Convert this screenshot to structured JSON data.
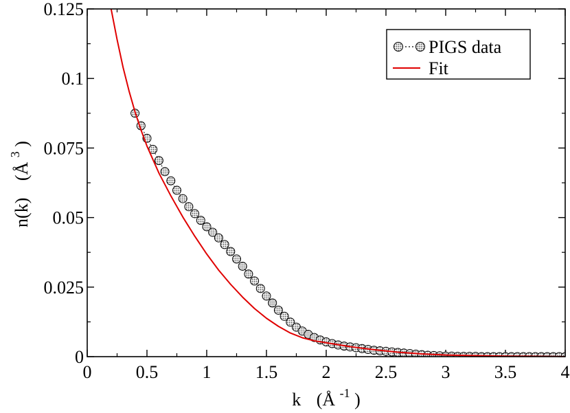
{
  "chart_data": {
    "type": "line",
    "title": "",
    "xlabel_main": "k",
    "xlabel_unit_open": "(Å",
    "xlabel_unit_sup": "-1",
    "xlabel_unit_close": ")",
    "ylabel_main": "n(k)",
    "ylabel_unit_open": "(Å",
    "ylabel_unit_sup": "3",
    "ylabel_unit_close": ")",
    "xlim": [
      0,
      4
    ],
    "ylim": [
      0,
      0.125
    ],
    "x_ticks": [
      0,
      0.5,
      1,
      1.5,
      2,
      2.5,
      3,
      3.5,
      4
    ],
    "x_tick_labels": [
      "0",
      "0.5",
      "1",
      "1.5",
      "2",
      "2.5",
      "3",
      "3.5",
      "4"
    ],
    "y_ticks": [
      0,
      0.025,
      0.05,
      0.075,
      0.1,
      0.125
    ],
    "y_tick_labels": [
      "0",
      "0.025",
      "0.05",
      "0.075",
      "0.1",
      "0.125"
    ],
    "grid": false,
    "legend_position": "top-right",
    "series": [
      {
        "name": "PIGS data",
        "style": "markers-dotted",
        "marker_color": "#c8c8c8",
        "x": [
          0.4,
          0.45,
          0.5,
          0.55,
          0.6,
          0.65,
          0.7,
          0.75,
          0.8,
          0.85,
          0.9,
          0.95,
          1.0,
          1.05,
          1.1,
          1.15,
          1.2,
          1.25,
          1.3,
          1.35,
          1.4,
          1.45,
          1.5,
          1.55,
          1.6,
          1.65,
          1.7,
          1.75,
          1.8,
          1.85,
          1.9,
          1.95,
          2.0,
          2.05,
          2.1,
          2.15,
          2.2,
          2.25,
          2.3,
          2.35,
          2.4,
          2.45,
          2.5,
          2.55,
          2.6,
          2.65,
          2.7,
          2.75,
          2.8,
          2.85,
          2.9,
          2.95,
          3.0,
          3.05,
          3.1,
          3.15,
          3.2,
          3.25,
          3.3,
          3.35,
          3.4,
          3.45,
          3.5,
          3.55,
          3.6,
          3.65,
          3.7,
          3.75,
          3.8,
          3.85,
          3.9,
          3.95,
          4.0
        ],
        "values": [
          0.0875,
          0.083,
          0.0785,
          0.0745,
          0.0705,
          0.0665,
          0.0632,
          0.0598,
          0.0568,
          0.0539,
          0.0514,
          0.049,
          0.0467,
          0.0447,
          0.0427,
          0.0403,
          0.0378,
          0.0351,
          0.0325,
          0.0297,
          0.0272,
          0.0245,
          0.0218,
          0.0193,
          0.0167,
          0.0145,
          0.0124,
          0.0106,
          0.0092,
          0.008,
          0.0069,
          0.006,
          0.0053,
          0.0047,
          0.0042,
          0.0038,
          0.0035,
          0.0032,
          0.0029,
          0.0026,
          0.0023,
          0.0021,
          0.0019,
          0.0017,
          0.0015,
          0.0013,
          0.0011,
          0.0009,
          0.0007,
          0.0005,
          0.0004,
          0.0003,
          0.0002,
          0.0002,
          0.0001,
          0.0001,
          0.0001,
          0.0001,
          0.0,
          0.0,
          0.0,
          0.0,
          0.0,
          0.0,
          0.0,
          0.0,
          0.0,
          0.0,
          0.0,
          0.0,
          0.0,
          0.0,
          0.0
        ]
      },
      {
        "name": "Fit",
        "style": "line",
        "line_color": "#e00000",
        "x": [
          0.2,
          0.25,
          0.3,
          0.35,
          0.4,
          0.45,
          0.5,
          0.6,
          0.7,
          0.8,
          0.9,
          1.0,
          1.1,
          1.2,
          1.3,
          1.4,
          1.5,
          1.6,
          1.7,
          1.8,
          1.9,
          2.0,
          2.1,
          2.2,
          2.4,
          2.6,
          2.8,
          3.0,
          3.2,
          3.5,
          4.0
        ],
        "values": [
          0.125,
          0.114,
          0.104,
          0.0955,
          0.088,
          0.0815,
          0.0757,
          0.066,
          0.0578,
          0.0502,
          0.0433,
          0.0369,
          0.0311,
          0.026,
          0.0214,
          0.0173,
          0.0138,
          0.0109,
          0.0085,
          0.0068,
          0.0057,
          0.005,
          0.0043,
          0.0036,
          0.0025,
          0.0016,
          0.001,
          0.0006,
          0.0004,
          0.0002,
          0.0
        ]
      }
    ]
  }
}
